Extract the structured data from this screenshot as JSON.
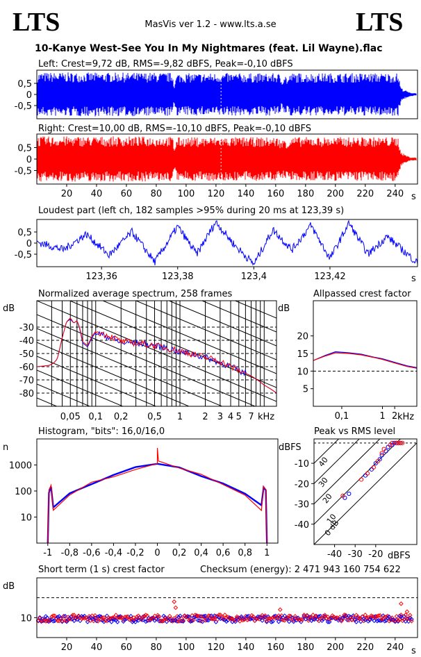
{
  "header": {
    "logo_left": "LTS",
    "logo_right": "LTS",
    "app_title": "MasVis ver 1.2 - www.lts.a.se",
    "file_name": "10-Kanye West-See You In My Nightmares (feat. Lil Wayne).flac"
  },
  "colors": {
    "left": "#0000ff",
    "right": "#ff0000",
    "grid": "#000000"
  },
  "chart_data": [
    {
      "type": "area",
      "title": "Left: Crest=9,72 dB, RMS=-9,82 dBFS, Peak=-0,10 dBFS",
      "ylim": [
        -1,
        1
      ],
      "yticks": [
        "0,5",
        "0",
        "-0,5"
      ],
      "xlim": [
        0,
        255
      ],
      "series": [
        {
          "name": "Left",
          "color": "#0000ff"
        }
      ],
      "envelope": [
        [
          0,
          0.97
        ],
        [
          2,
          0.99
        ],
        [
          10,
          0.99
        ],
        [
          91,
          0.98
        ],
        [
          92,
          0.45
        ],
        [
          94,
          0.95
        ],
        [
          122,
          0.96
        ],
        [
          123,
          0.99
        ],
        [
          124,
          0.96
        ],
        [
          162,
          0.95
        ],
        [
          164,
          0.7
        ],
        [
          166,
          0.99
        ],
        [
          168,
          0.7
        ],
        [
          170,
          0.96
        ],
        [
          242,
          0.96
        ],
        [
          244,
          0.3
        ],
        [
          246,
          0.22
        ],
        [
          250,
          0.08
        ],
        [
          255,
          0.06
        ]
      ]
    },
    {
      "type": "area",
      "title": "Right: Crest=10,00 dB, RMS=-10,10 dBFS, Peak=-0,10 dBFS",
      "ylim": [
        -1,
        1
      ],
      "yticks": [
        "0,5",
        "0",
        "-0,5"
      ],
      "xlim": [
        0,
        255
      ],
      "xticks": [
        "20",
        "40",
        "60",
        "80",
        "100",
        "120",
        "140",
        "160",
        "180",
        "200",
        "220",
        "240"
      ],
      "xunit": "s",
      "series": [
        {
          "name": "Right",
          "color": "#ff0000"
        }
      ],
      "envelope": [
        [
          0,
          0.97
        ],
        [
          2,
          0.99
        ],
        [
          10,
          0.99
        ],
        [
          91,
          0.98
        ],
        [
          92,
          0.5
        ],
        [
          94,
          0.95
        ],
        [
          122,
          0.96
        ],
        [
          123,
          0.99
        ],
        [
          124,
          0.96
        ],
        [
          162,
          0.95
        ],
        [
          164,
          0.75
        ],
        [
          166,
          0.99
        ],
        [
          168,
          0.75
        ],
        [
          170,
          0.96
        ],
        [
          242,
          0.96
        ],
        [
          244,
          0.3
        ],
        [
          246,
          0.22
        ],
        [
          250,
          0.08
        ],
        [
          255,
          0.06
        ]
      ]
    },
    {
      "type": "line",
      "title": "Loudest part (left  ch, 182 samples >95% during 20 ms at 123,39 s)",
      "ylim": [
        -1,
        1
      ],
      "yticks": [
        "0,5",
        "0",
        "-0,5"
      ],
      "xlim": [
        123.343,
        123.443
      ],
      "xticks": [
        "123,36",
        "123,38",
        "123,4",
        "123,42"
      ],
      "xunit": "s",
      "series": [
        {
          "name": "Left",
          "color": "#0000ff"
        }
      ],
      "points": [
        [
          123.343,
          0.05
        ],
        [
          123.35,
          -0.3
        ],
        [
          123.356,
          0.4
        ],
        [
          123.362,
          -0.55
        ],
        [
          123.368,
          0.5
        ],
        [
          123.374,
          -0.85
        ],
        [
          123.38,
          0.75
        ],
        [
          123.385,
          -0.5
        ],
        [
          123.39,
          0.95
        ],
        [
          123.395,
          -0.1
        ],
        [
          123.4,
          -0.95
        ],
        [
          123.405,
          0.6
        ],
        [
          123.41,
          -0.3
        ],
        [
          123.415,
          0.8
        ],
        [
          123.42,
          -0.7
        ],
        [
          123.425,
          0.9
        ],
        [
          123.43,
          -0.5
        ],
        [
          123.435,
          0.3
        ],
        [
          123.443,
          -0.9
        ]
      ]
    },
    {
      "type": "line",
      "title": "Normalized average spectrum, 258 frames",
      "ylabel": "dB",
      "ylim": [
        -90,
        -10
      ],
      "yticks": [
        "-30",
        "-40",
        "-50",
        "-60",
        "-70",
        "-80"
      ],
      "xscale": "log",
      "xlim": [
        0.02,
        14
      ],
      "xticks": [
        "0,05",
        "0,1",
        "0,2",
        "0,5",
        "1",
        "2",
        "3",
        "4",
        "5",
        "7"
      ],
      "xunit": "kHz",
      "series": [
        {
          "name": "Left",
          "color": "#0000ff",
          "points": [
            [
              0.02,
              -60
            ],
            [
              0.028,
              -59
            ],
            [
              0.032,
              -57
            ],
            [
              0.035,
              -54
            ],
            [
              0.04,
              -38
            ],
            [
              0.045,
              -26
            ],
            [
              0.05,
              -24
            ],
            [
              0.055,
              -27
            ],
            [
              0.06,
              -25
            ],
            [
              0.065,
              -32
            ],
            [
              0.07,
              -42
            ],
            [
              0.08,
              -45
            ],
            [
              0.09,
              -38
            ],
            [
              0.1,
              -34
            ],
            [
              0.12,
              -36
            ],
            [
              0.15,
              -38
            ],
            [
              0.2,
              -42
            ],
            [
              0.3,
              -42
            ],
            [
              0.5,
              -44
            ],
            [
              0.7,
              -46
            ],
            [
              1,
              -49
            ],
            [
              1.5,
              -51
            ],
            [
              2,
              -53
            ],
            [
              3,
              -57
            ],
            [
              4,
              -60
            ],
            [
              5,
              -63
            ],
            [
              7,
              -67
            ],
            [
              10,
              -74
            ],
            [
              14,
              -80
            ]
          ]
        },
        {
          "name": "Right",
          "color": "#ff0000",
          "points": [
            [
              0.02,
              -60
            ],
            [
              0.028,
              -59
            ],
            [
              0.032,
              -57
            ],
            [
              0.035,
              -54
            ],
            [
              0.04,
              -38
            ],
            [
              0.045,
              -26
            ],
            [
              0.05,
              -23
            ],
            [
              0.055,
              -27
            ],
            [
              0.06,
              -25
            ],
            [
              0.065,
              -31
            ],
            [
              0.07,
              -41
            ],
            [
              0.08,
              -44
            ],
            [
              0.09,
              -37
            ],
            [
              0.1,
              -33
            ],
            [
              0.12,
              -35
            ],
            [
              0.15,
              -37
            ],
            [
              0.2,
              -41
            ],
            [
              0.3,
              -42
            ],
            [
              0.5,
              -44
            ],
            [
              0.7,
              -46
            ],
            [
              1,
              -48
            ],
            [
              1.5,
              -51
            ],
            [
              2,
              -53
            ],
            [
              3,
              -56
            ],
            [
              4,
              -60
            ],
            [
              5,
              -63
            ],
            [
              7,
              -67
            ],
            [
              10,
              -74
            ],
            [
              14,
              -80
            ]
          ]
        }
      ]
    },
    {
      "type": "line",
      "title": "Allpassed crest factor",
      "ylabel": "dB",
      "ylim": [
        0,
        30
      ],
      "yticks": [
        "20",
        "15",
        "10",
        "5"
      ],
      "xscale": "log",
      "xlim": [
        0.02,
        7
      ],
      "xticks": [
        "0,1",
        "1",
        "2"
      ],
      "xunit": "kHz",
      "reference_line": 10,
      "series": [
        {
          "name": "Left",
          "color": "#0000ff",
          "points": [
            [
              0.02,
              13
            ],
            [
              0.04,
              14.5
            ],
            [
              0.07,
              15.5
            ],
            [
              0.15,
              15.2
            ],
            [
              0.3,
              14.8
            ],
            [
              0.6,
              14
            ],
            [
              1,
              13.5
            ],
            [
              2,
              12.5
            ],
            [
              4,
              11.5
            ],
            [
              7,
              11
            ]
          ]
        },
        {
          "name": "Right",
          "color": "#ff0000",
          "points": [
            [
              0.02,
              13
            ],
            [
              0.04,
              14.3
            ],
            [
              0.07,
              15.2
            ],
            [
              0.15,
              15
            ],
            [
              0.3,
              14.6
            ],
            [
              0.6,
              13.9
            ],
            [
              1,
              13.3
            ],
            [
              2,
              12.3
            ],
            [
              4,
              11.3
            ],
            [
              7,
              10.8
            ]
          ]
        }
      ]
    },
    {
      "type": "line",
      "title": "Histogram, \"bits\": 16,0/16,0",
      "ylabel": "n",
      "yscale": "log",
      "ylim": [
        1,
        10000
      ],
      "yticks": [
        "1000",
        "100",
        "10"
      ],
      "xlim": [
        -1.1,
        1.1
      ],
      "xticks": [
        "-1",
        "-0,8",
        "-0,6",
        "-0,4",
        "-0,2",
        "0",
        "0,2",
        "0,4",
        "0,6",
        "0,8",
        "1"
      ],
      "series": [
        {
          "name": "Left",
          "color": "#0000ff",
          "points": [
            [
              -1,
              1
            ],
            [
              -0.99,
              100
            ],
            [
              -0.97,
              150
            ],
            [
              -0.95,
              25
            ],
            [
              -0.8,
              80
            ],
            [
              -0.6,
              200
            ],
            [
              -0.4,
              400
            ],
            [
              -0.2,
              700
            ],
            [
              0,
              1200
            ],
            [
              0.2,
              700
            ],
            [
              0.4,
              400
            ],
            [
              0.6,
              200
            ],
            [
              0.8,
              80
            ],
            [
              0.95,
              25
            ],
            [
              0.97,
              150
            ],
            [
              0.99,
              100
            ],
            [
              1,
              1
            ]
          ]
        },
        {
          "name": "Right",
          "color": "#ff0000",
          "points": [
            [
              -1,
              1
            ],
            [
              -0.99,
              100
            ],
            [
              -0.97,
              150
            ],
            [
              -0.95,
              20
            ],
            [
              -0.8,
              70
            ],
            [
              -0.6,
              200
            ],
            [
              -0.4,
              400
            ],
            [
              -0.2,
              700
            ],
            [
              0,
              1200
            ],
            [
              0,
              4500
            ],
            [
              0.01,
              1200
            ],
            [
              0.2,
              700
            ],
            [
              0.4,
              400
            ],
            [
              0.6,
              200
            ],
            [
              0.8,
              70
            ],
            [
              0.95,
              20
            ],
            [
              0.97,
              150
            ],
            [
              0.99,
              100
            ],
            [
              1,
              1
            ]
          ]
        }
      ]
    },
    {
      "type": "scatter",
      "title": "Peak vs RMS level",
      "ylabel": "dBFS",
      "xlabel": "dBFS",
      "xlim": [
        -50,
        0
      ],
      "ylim": [
        -50,
        2
      ],
      "yticks": [
        "-10",
        "-20",
        "-30",
        "-40"
      ],
      "xticks": [
        "-40",
        "-30",
        "-20"
      ],
      "diagonal_labels": [
        "40",
        "30",
        "20",
        "10",
        "0 dB"
      ],
      "series": [
        {
          "name": "Left",
          "color": "#0000ff",
          "points": [
            [
              -35,
              -27
            ],
            [
              -33,
              -25
            ],
            [
              -25,
              -16
            ],
            [
              -22,
              -13
            ],
            [
              -20,
              -10
            ],
            [
              -18,
              -8
            ],
            [
              -17,
              -6
            ],
            [
              -15,
              -4
            ],
            [
              -14,
              -2
            ],
            [
              -12,
              -1
            ],
            [
              -11,
              0
            ],
            [
              -10,
              0
            ],
            [
              -9,
              0
            ],
            [
              -8,
              0
            ]
          ]
        },
        {
          "name": "Right",
          "color": "#ff0000",
          "points": [
            [
              -36,
              -26
            ],
            [
              -27,
              -18
            ],
            [
              -24,
              -15
            ],
            [
              -21,
              -12
            ],
            [
              -19,
              -9
            ],
            [
              -17,
              -5
            ],
            [
              -16,
              -3
            ],
            [
              -13,
              -1
            ],
            [
              -12,
              0
            ],
            [
              -10,
              0
            ],
            [
              -9,
              0
            ],
            [
              -8,
              0
            ],
            [
              -7,
              0
            ]
          ]
        }
      ]
    },
    {
      "type": "scatter",
      "title": "Short term (1 s) crest factor",
      "annotation": "Checksum (energy):  2 471 943 160 754 622",
      "ylabel": "dB",
      "ylim": [
        5,
        20
      ],
      "yticks": [
        "10"
      ],
      "reference_line": 15,
      "xlim": [
        0,
        255
      ],
      "xticks": [
        "20",
        "40",
        "60",
        "80",
        "100",
        "120",
        "140",
        "160",
        "180",
        "200",
        "220",
        "240"
      ],
      "xunit": "s",
      "series": [
        {
          "name": "Left",
          "color": "#0000ff"
        },
        {
          "name": "Right",
          "color": "#ff0000"
        }
      ],
      "outliers": [
        [
          92,
          14
        ],
        [
          93,
          12.5
        ],
        [
          163,
          12
        ],
        [
          244,
          13.5
        ],
        [
          248,
          11.5
        ]
      ]
    }
  ]
}
